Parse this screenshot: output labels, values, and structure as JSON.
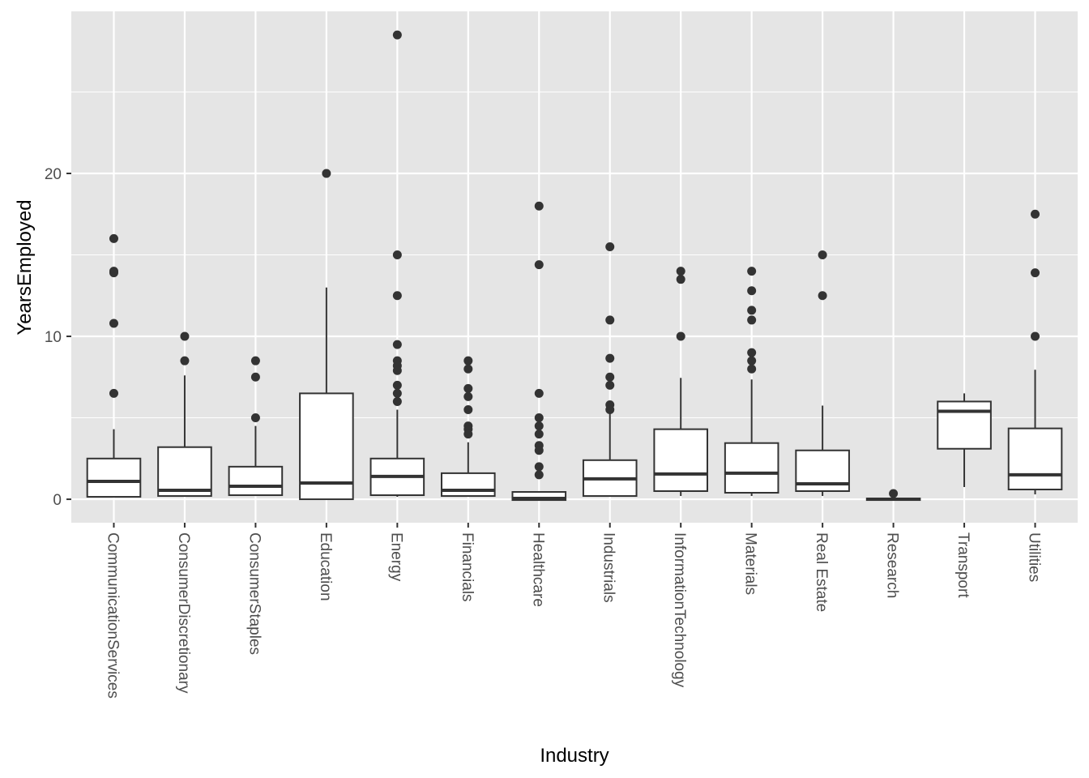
{
  "chart_data": {
    "type": "boxplot",
    "title": "",
    "xlabel": "Industry",
    "ylabel": "YearsEmployed",
    "ylim": [
      -1.44,
      29.95
    ],
    "yticks": [
      0,
      10,
      20
    ],
    "yticks_minor": [
      5,
      15,
      25
    ],
    "grid": true,
    "background": "#E5E5E5",
    "gridcolor": "#FFFFFF",
    "box_color": "#333333",
    "point_color": "#333333",
    "categories": [
      "CommunicationServices",
      "ConsumerDiscretionary",
      "ConsumerStaples",
      "Education",
      "Energy",
      "Financials",
      "Healthcare",
      "Industrials",
      "InformationTechnology",
      "Materials",
      "Real Estate",
      "Research",
      "Transport",
      "Utilities"
    ],
    "boxes": [
      {
        "min": 0.1,
        "q1": 0.15,
        "median": 1.1,
        "q3": 2.5,
        "max": 4.3,
        "outliers": [
          16,
          14,
          13.9,
          10.8,
          6.5
        ]
      },
      {
        "min": 0.15,
        "q1": 0.2,
        "median": 0.55,
        "q3": 3.2,
        "max": 7.6,
        "outliers": [
          10,
          8.5
        ]
      },
      {
        "min": 0.2,
        "q1": 0.25,
        "median": 0.8,
        "q3": 2.0,
        "max": 4.5,
        "outliers": [
          8.5,
          7.5,
          5.0
        ]
      },
      {
        "min": 0,
        "q1": 0,
        "median": 1.0,
        "q3": 6.5,
        "max": 13,
        "outliers": [
          20
        ]
      },
      {
        "min": 0.15,
        "q1": 0.25,
        "median": 1.4,
        "q3": 2.5,
        "max": 5.5,
        "outliers": [
          28.5,
          15,
          12.5,
          9.5,
          8.5,
          8.2,
          7.9,
          7.0,
          6.5,
          6.0
        ]
      },
      {
        "min": 0.15,
        "q1": 0.2,
        "median": 0.55,
        "q3": 1.6,
        "max": 3.5,
        "outliers": [
          8.5,
          8.0,
          6.8,
          6.3,
          5.5,
          4.5,
          4.3,
          4.0
        ]
      },
      {
        "min": -0.05,
        "q1": -0.05,
        "median": 0.05,
        "q3": 0.45,
        "max": 0.45,
        "outliers": [
          18,
          14.4,
          6.5,
          5.0,
          4.5,
          4.0,
          3.3,
          3.0,
          2.0,
          1.5
        ]
      },
      {
        "min": 0.15,
        "q1": 0.2,
        "median": 1.25,
        "q3": 2.4,
        "max": 5.4,
        "outliers": [
          15.5,
          11,
          8.65,
          7.5,
          7.0,
          5.8,
          5.5
        ]
      },
      {
        "min": 0.2,
        "q1": 0.5,
        "median": 1.55,
        "q3": 4.3,
        "max": 7.45,
        "outliers": [
          14,
          13.5,
          10
        ]
      },
      {
        "min": 0.2,
        "q1": 0.4,
        "median": 1.6,
        "q3": 3.45,
        "max": 7.35,
        "outliers": [
          14,
          12.8,
          11.6,
          11,
          9.0,
          8.5,
          8.0
        ]
      },
      {
        "min": 0.2,
        "q1": 0.5,
        "median": 0.95,
        "q3": 3.0,
        "max": 5.75,
        "outliers": [
          15,
          12.5
        ]
      },
      {
        "min": -0.05,
        "q1": -0.05,
        "median": 0,
        "q3": 0.05,
        "max": 0.05,
        "outliers": [
          0.35
        ]
      },
      {
        "min": 0.75,
        "q1": 3.1,
        "median": 5.4,
        "q3": 6.0,
        "max": 6.5,
        "outliers": []
      },
      {
        "min": 0.3,
        "q1": 0.6,
        "median": 1.5,
        "q3": 4.35,
        "max": 7.95,
        "outliers": [
          17.5,
          13.9,
          10
        ]
      }
    ]
  }
}
